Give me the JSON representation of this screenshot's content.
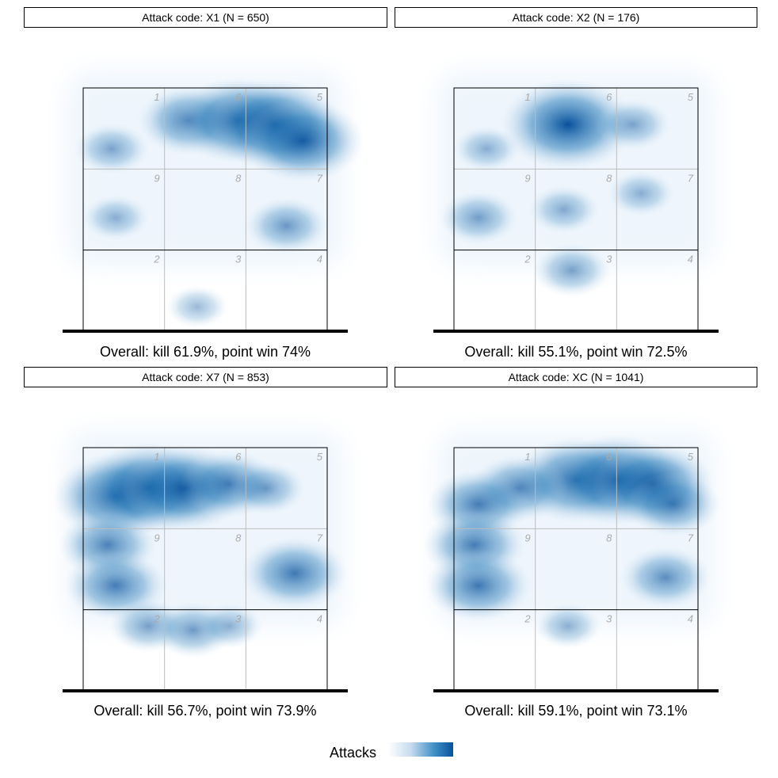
{
  "legend": {
    "title": "Attacks"
  },
  "colors": {
    "low": "#f7fbff",
    "high": "#08519c",
    "zone_line": "#bdbdbd",
    "zone_number": "#aaaaaa"
  },
  "chart_data": [
    {
      "type": "heatmap",
      "strip": "Attack code: X1 (N = 650)",
      "summary": "Overall: kill 61.9%, point win 74%",
      "zone_labels": [
        "1",
        "6",
        "5",
        "9",
        "8",
        "7",
        "2",
        "3",
        "4"
      ],
      "x": [
        0.5,
        3.5
      ],
      "y": [
        0.5,
        3.5
      ],
      "hotspots": [
        {
          "x": 1.8,
          "y": 3.1,
          "w": 0.6
        },
        {
          "x": 2.4,
          "y": 3.1,
          "w": 0.9
        },
        {
          "x": 2.85,
          "y": 3.05,
          "w": 1.0
        },
        {
          "x": 3.2,
          "y": 2.85,
          "w": 0.85
        },
        {
          "x": 0.85,
          "y": 2.75,
          "w": 0.25
        },
        {
          "x": 3.0,
          "y": 1.8,
          "w": 0.35
        },
        {
          "x": 0.9,
          "y": 1.9,
          "w": 0.15
        },
        {
          "x": 1.9,
          "y": 0.8,
          "w": 0.1
        }
      ]
    },
    {
      "type": "heatmap",
      "strip": "Attack code: X2 (N = 176)",
      "summary": "Overall: kill 55.1%, point win 72.5%",
      "zone_labels": [
        "1",
        "6",
        "5",
        "9",
        "8",
        "7",
        "2",
        "3",
        "4"
      ],
      "x": [
        0.5,
        3.5
      ],
      "y": [
        0.5,
        3.5
      ],
      "hotspots": [
        {
          "x": 1.9,
          "y": 3.05,
          "w": 1.0
        },
        {
          "x": 2.7,
          "y": 3.05,
          "w": 0.25
        },
        {
          "x": 0.9,
          "y": 2.75,
          "w": 0.15
        },
        {
          "x": 0.8,
          "y": 1.9,
          "w": 0.3
        },
        {
          "x": 1.85,
          "y": 2.0,
          "w": 0.2
        },
        {
          "x": 2.8,
          "y": 2.2,
          "w": 0.15
        },
        {
          "x": 1.95,
          "y": 1.25,
          "w": 0.3
        }
      ]
    },
    {
      "type": "heatmap",
      "strip": "Attack code: X7 (N = 853)",
      "summary": "Overall: kill 56.7%, point win 73.9%",
      "zone_labels": [
        "1",
        "6",
        "5",
        "9",
        "8",
        "7",
        "2",
        "3",
        "4"
      ],
      "x": [
        0.5,
        3.5
      ],
      "y": [
        0.5,
        3.5
      ],
      "hotspots": [
        {
          "x": 0.9,
          "y": 2.9,
          "w": 0.9
        },
        {
          "x": 1.3,
          "y": 3.0,
          "w": 1.0
        },
        {
          "x": 1.75,
          "y": 3.0,
          "w": 0.9
        },
        {
          "x": 2.3,
          "y": 3.05,
          "w": 0.55
        },
        {
          "x": 2.75,
          "y": 3.0,
          "w": 0.3
        },
        {
          "x": 0.8,
          "y": 2.3,
          "w": 0.55
        },
        {
          "x": 0.9,
          "y": 1.8,
          "w": 0.6
        },
        {
          "x": 3.1,
          "y": 1.95,
          "w": 0.65
        },
        {
          "x": 1.3,
          "y": 1.3,
          "w": 0.3
        },
        {
          "x": 1.85,
          "y": 1.25,
          "w": 0.35
        },
        {
          "x": 2.3,
          "y": 1.3,
          "w": 0.15
        }
      ]
    },
    {
      "type": "heatmap",
      "strip": "Attack code: XC (N = 1041)",
      "summary": "Overall: kill 59.1%, point win 73.1%",
      "zone_labels": [
        "1",
        "6",
        "5",
        "9",
        "8",
        "7",
        "2",
        "3",
        "4"
      ],
      "x": [
        0.5,
        3.5
      ],
      "y": [
        0.5,
        3.5
      ],
      "hotspots": [
        {
          "x": 2.0,
          "y": 3.1,
          "w": 0.9
        },
        {
          "x": 2.5,
          "y": 3.1,
          "w": 1.0
        },
        {
          "x": 2.95,
          "y": 3.05,
          "w": 0.85
        },
        {
          "x": 3.2,
          "y": 2.8,
          "w": 0.5
        },
        {
          "x": 1.3,
          "y": 3.0,
          "w": 0.55
        },
        {
          "x": 0.8,
          "y": 2.8,
          "w": 0.6
        },
        {
          "x": 0.75,
          "y": 2.3,
          "w": 0.6
        },
        {
          "x": 0.8,
          "y": 1.8,
          "w": 0.65
        },
        {
          "x": 3.1,
          "y": 1.9,
          "w": 0.45
        },
        {
          "x": 1.9,
          "y": 1.3,
          "w": 0.15
        }
      ]
    }
  ]
}
